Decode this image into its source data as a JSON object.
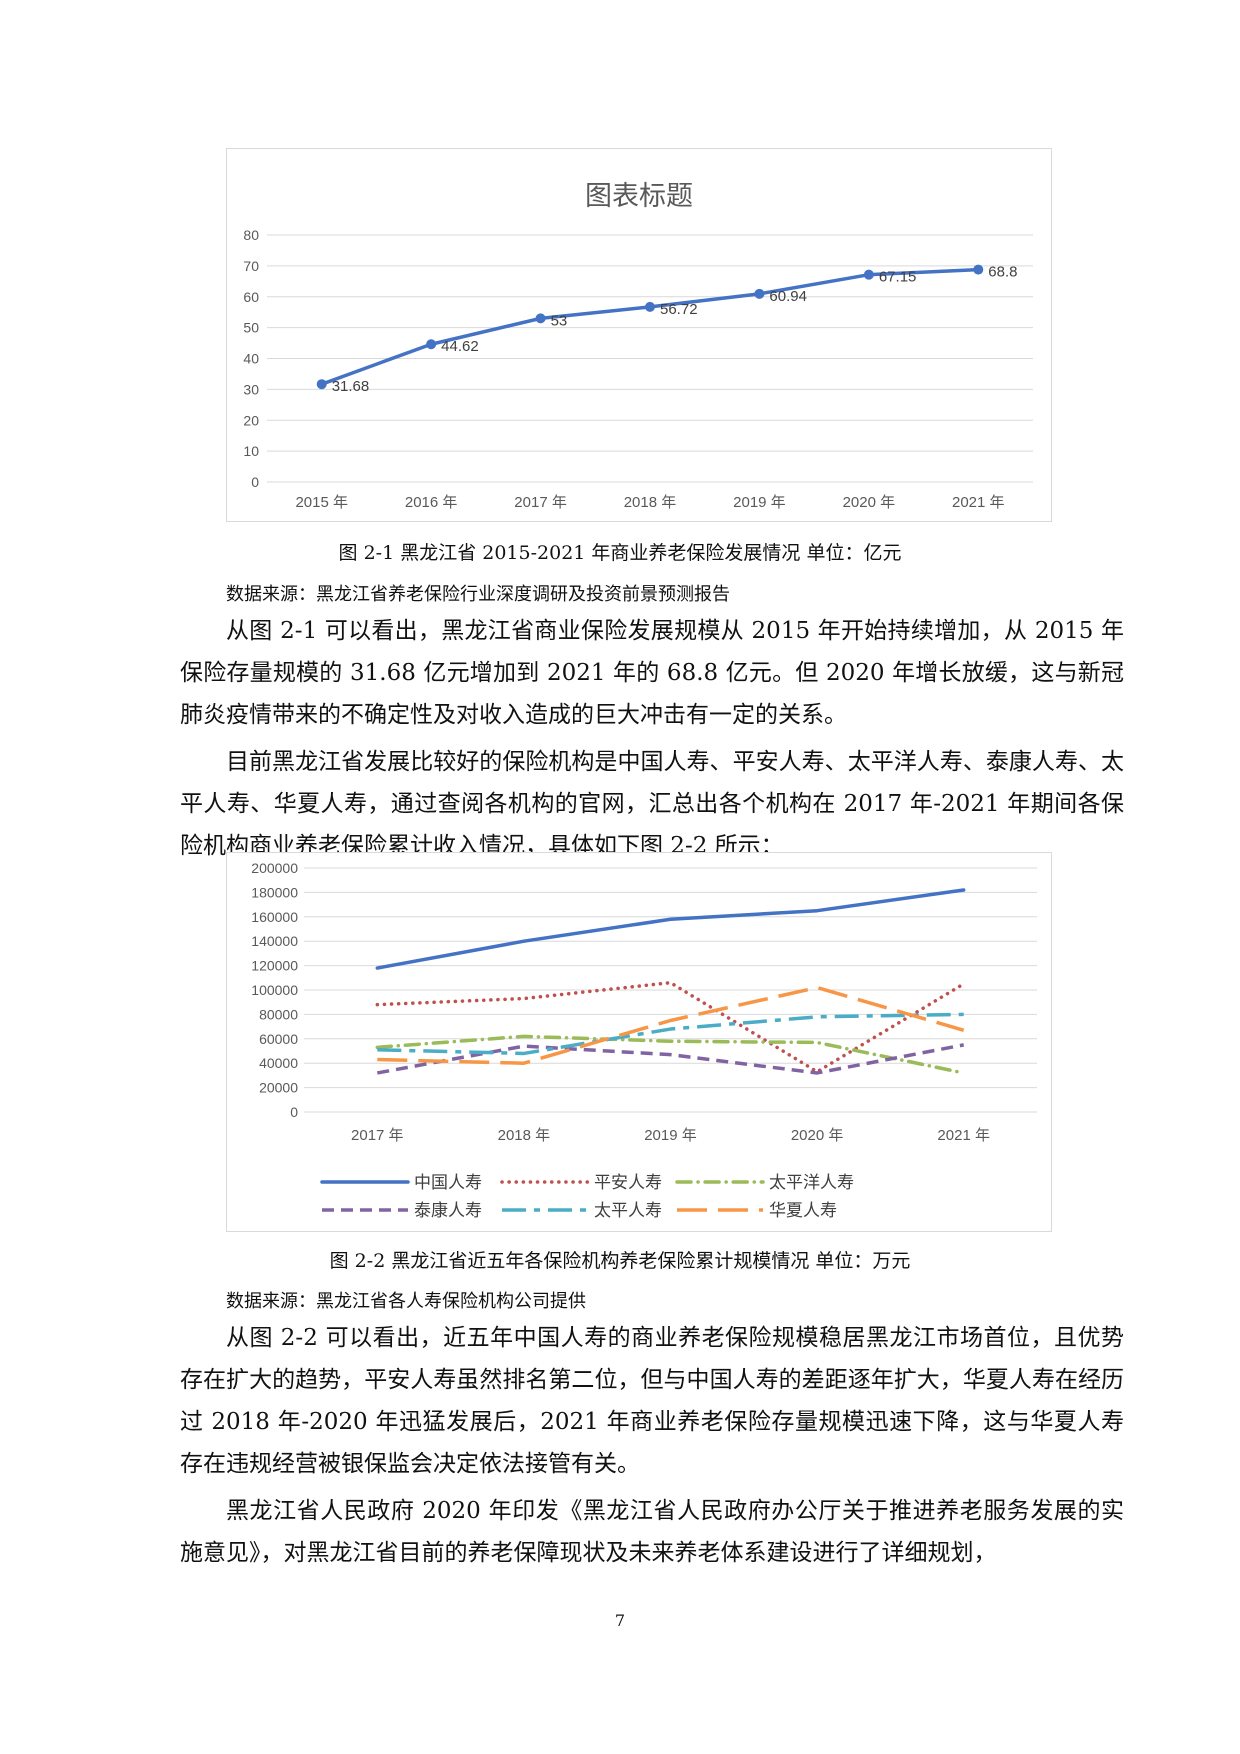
{
  "figure1": {
    "caption": "图 2-1  黑龙江省 2015-2021 年商业养老保险发展情况    单位：亿元",
    "source": "数据来源：黑龙江省养老保险行业深度调研及投资前景预测报告"
  },
  "paragraph1": "从图 2-1 可以看出，黑龙江省商业保险发展规模从 2015 年开始持续增加，从 2015 年保险存量规模的 31.68 亿元增加到 2021 年的 68.8 亿元。但 2020 年增长放缓，这与新冠肺炎疫情带来的不确定性及对收入造成的巨大冲击有一定的关系。",
  "paragraph2": "目前黑龙江省发展比较好的保险机构是中国人寿、平安人寿、太平洋人寿、泰康人寿、太平人寿、华夏人寿，通过查阅各机构的官网，汇总出各个机构在 2017 年-2021 年期间各保险机构商业养老保险累计收入情况，具体如下图 2-2 所示：",
  "figure2": {
    "caption": "图 2-2  黑龙江省近五年各保险机构养老保险累计规模情况    单位：万元",
    "source": "数据来源：黑龙江省各人寿保险机构公司提供"
  },
  "paragraph3": "从图 2-2 可以看出，近五年中国人寿的商业养老保险规模稳居黑龙江市场首位，且优势存在扩大的趋势，平安人寿虽然排名第二位，但与中国人寿的差距逐年扩大，华夏人寿在经历过 2018 年-2020 年迅猛发展后，2021 年商业养老保险存量规模迅速下降，这与华夏人寿存在违规经营被银保监会决定依法接管有关。",
  "paragraph4": "黑龙江省人民政府 2020 年印发《黑龙江省人民政府办公厅关于推进养老服务发展的实施意见》，对黑龙江省目前的养老保障现状及未来养老体系建设进行了详细规划，",
  "page_number": "7",
  "chart_data": [
    {
      "type": "line",
      "title": "图表标题",
      "categories": [
        "2015 年",
        "2016 年",
        "2017 年",
        "2018 年",
        "2019 年",
        "2020 年",
        "2021 年"
      ],
      "values": [
        31.68,
        44.62,
        53,
        56.72,
        60.94,
        67.15,
        68.8
      ],
      "data_labels": [
        "31.68",
        "44.62",
        "53",
        "56.72",
        "60.94",
        "67.15",
        "68.8"
      ],
      "ylim": [
        0,
        80
      ],
      "yticks": [
        0,
        10,
        20,
        30,
        40,
        50,
        60,
        70,
        80
      ],
      "grid": true,
      "color": "#4472C4"
    },
    {
      "type": "line",
      "title": "",
      "categories": [
        "2017 年",
        "2018 年",
        "2019 年",
        "2020 年",
        "2021 年"
      ],
      "ylim": [
        0,
        200000
      ],
      "yticks": [
        0,
        20000,
        40000,
        60000,
        80000,
        100000,
        120000,
        140000,
        160000,
        180000,
        200000
      ],
      "grid": true,
      "legend_position": "bottom",
      "series": [
        {
          "name": "中国人寿",
          "values": [
            118000,
            140000,
            158000,
            165000,
            182000
          ],
          "color": "#4472C4",
          "style": "solid"
        },
        {
          "name": "平安人寿",
          "values": [
            88000,
            93000,
            106000,
            33000,
            105000
          ],
          "color": "#C0504D",
          "style": "dotted"
        },
        {
          "name": "太平洋人寿",
          "values": [
            53000,
            62000,
            58000,
            57000,
            32000
          ],
          "color": "#9BBB59",
          "style": "dashdot"
        },
        {
          "name": "泰康人寿",
          "values": [
            32000,
            54000,
            47000,
            32000,
            55000
          ],
          "color": "#8064A2",
          "style": "dashed"
        },
        {
          "name": "太平人寿",
          "values": [
            51000,
            48000,
            68000,
            78000,
            80000
          ],
          "color": "#4BACC6",
          "style": "longdashdot"
        },
        {
          "name": "华夏人寿",
          "values": [
            43000,
            40000,
            75000,
            102000,
            67000
          ],
          "color": "#F79646",
          "style": "longdash"
        }
      ]
    }
  ]
}
